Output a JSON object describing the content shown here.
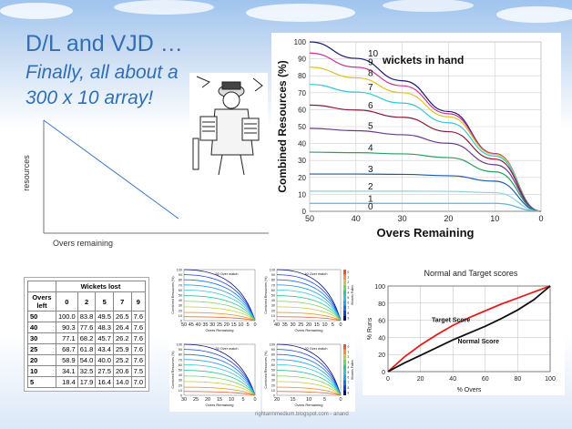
{
  "slide": {
    "title": "D/L and VJD …",
    "subtitle_line1": "Finally, all about a",
    "subtitle_line2": "300 x 10 array!",
    "credit": "rightarmmedium.blogspot.com - anand"
  },
  "colors": {
    "title": "#2f6fb6"
  },
  "chart_data": [
    {
      "type": "line",
      "id": "sketch",
      "xlabel": "Overs remaining",
      "ylabel": "resources",
      "series": [
        {
          "x": [
            0,
            1
          ],
          "y": [
            1,
            0
          ]
        }
      ]
    },
    {
      "type": "line",
      "id": "resources",
      "title": "wickets in hand",
      "xlabel": "Overs Remaining",
      "ylabel": "Combined Resources (%)",
      "xlim": [
        50,
        0
      ],
      "ylim": [
        0,
        100
      ],
      "x_ticks": [
        50,
        40,
        30,
        20,
        10,
        0
      ],
      "y_ticks": [
        0,
        10,
        20,
        30,
        40,
        50,
        60,
        70,
        80,
        90,
        100
      ],
      "grid": true,
      "x": [
        50,
        40,
        30,
        20,
        10,
        0
      ],
      "series": [
        {
          "name": "10",
          "color": "#1a1a6e",
          "values": [
            100,
            90.3,
            77.1,
            58.9,
            34.1,
            0
          ]
        },
        {
          "name": "9",
          "color": "#cc3399",
          "values": [
            93.4,
            85.1,
            74.1,
            57.6,
            34.0,
            0
          ]
        },
        {
          "name": "8",
          "color": "#e0c020",
          "values": [
            85.1,
            78.8,
            70.0,
            55.8,
            33.6,
            0
          ]
        },
        {
          "name": "7",
          "color": "#30c8d8",
          "values": [
            74.9,
            70.4,
            63.9,
            52.3,
            32.6,
            0
          ]
        },
        {
          "name": "6",
          "color": "#8b1a3a",
          "values": [
            62.7,
            59.8,
            55.5,
            47.0,
            30.8,
            0
          ]
        },
        {
          "name": "5",
          "color": "#6a3a8a",
          "values": [
            49.0,
            47.6,
            45.2,
            40.2,
            27.5,
            0
          ]
        },
        {
          "name": "4",
          "color": "#2aa060",
          "values": [
            34.9,
            34.6,
            33.9,
            31.7,
            23.3,
            0
          ]
        },
        {
          "name": "3",
          "color": "#1a5aa8",
          "values": [
            22.0,
            22.0,
            21.8,
            21.0,
            17.8,
            0
          ]
        },
        {
          "name": "2",
          "color": "#8bd0d8",
          "values": [
            11.9,
            11.9,
            11.9,
            11.8,
            11.0,
            0
          ]
        },
        {
          "name": "1",
          "color": "#6ab0e0",
          "values": [
            4.7,
            4.7,
            4.7,
            4.7,
            4.7,
            0
          ]
        },
        {
          "name": "0",
          "color": "#a0a0a0",
          "values": [
            0,
            0,
            0,
            0,
            0,
            0
          ]
        }
      ]
    },
    {
      "type": "table",
      "id": "wickets-table",
      "title": "Wickets lost",
      "columns": [
        "Overs left",
        "0",
        "2",
        "5",
        "7",
        "9"
      ],
      "rows": [
        [
          "50",
          "100.0",
          "83.8",
          "49.5",
          "26.5",
          "7.6"
        ],
        [
          "40",
          "90.3",
          "77.6",
          "48.3",
          "26.4",
          "7.6"
        ],
        [
          "30",
          "77.1",
          "68.2",
          "45.7",
          "26.2",
          "7.6"
        ],
        [
          "25",
          "68.7",
          "61.8",
          "43.4",
          "25.9",
          "7.6"
        ],
        [
          "20",
          "58.9",
          "54.0",
          "40.0",
          "25.2",
          "7.6"
        ],
        [
          "10",
          "34.1",
          "32.5",
          "27.5",
          "20.6",
          "7.5"
        ],
        [
          "5",
          "18.4",
          "17.9",
          "16.4",
          "14.0",
          "7.0"
        ]
      ]
    },
    {
      "type": "line",
      "id": "over-50",
      "title": "50 Over match",
      "xlabel": "Overs Remaining",
      "ylabel": "Combined Resources (%)",
      "x_ticks": [
        50,
        45,
        40,
        35,
        30,
        25,
        20,
        15,
        10,
        5,
        0
      ],
      "y_ticks": [
        0,
        10,
        20,
        30,
        40,
        50,
        60,
        70,
        80,
        90,
        100
      ],
      "overs": 50
    },
    {
      "type": "line",
      "id": "over-40",
      "title": "40 Over match",
      "xlabel": "Overs Remaining",
      "ylabel": "Combined Resources (%)",
      "x_ticks": [
        40,
        35,
        30,
        25,
        20,
        15,
        10,
        5,
        0
      ],
      "y_ticks": [
        0,
        10,
        20,
        30,
        40,
        50,
        60,
        70,
        80,
        90,
        100
      ],
      "legend_label": "Wickets Fallen",
      "legend_values": [
        "0",
        "1",
        "2",
        "3",
        "4",
        "5",
        "6",
        "7",
        "8",
        "9"
      ],
      "overs": 40
    },
    {
      "type": "line",
      "id": "over-30",
      "title": "30 Over match",
      "xlabel": "Overs Remaining",
      "ylabel": "Combined Resources (%)",
      "x_ticks": [
        30,
        25,
        20,
        15,
        10,
        5,
        0
      ],
      "y_ticks": [
        0,
        10,
        20,
        30,
        40,
        50,
        60,
        70,
        80,
        90,
        100
      ],
      "overs": 30
    },
    {
      "type": "line",
      "id": "over-20",
      "title": "20 Over match",
      "xlabel": "Overs Remaining",
      "ylabel": "Combined Resources (%)",
      "x_ticks": [
        20,
        15,
        10,
        5,
        0
      ],
      "y_ticks": [
        0,
        10,
        20,
        30,
        40,
        50,
        60,
        70,
        80,
        90,
        100
      ],
      "legend_label": "Wickets Fallen",
      "legend_values": [
        "0",
        "1",
        "2",
        "3",
        "4",
        "5",
        "6",
        "7",
        "8",
        "9"
      ],
      "overs": 20
    },
    {
      "type": "line",
      "id": "normal-target",
      "title": "Normal and Target scores",
      "xlabel": "% Overs",
      "ylabel": "% Runs",
      "xlim": [
        0,
        100
      ],
      "ylim": [
        0,
        100
      ],
      "x_ticks": [
        0,
        20,
        40,
        60,
        80,
        100
      ],
      "y_ticks": [
        0,
        20,
        40,
        60,
        80,
        100
      ],
      "grid": true,
      "x": [
        0,
        10,
        20,
        30,
        40,
        50,
        60,
        70,
        80,
        90,
        100
      ],
      "series": [
        {
          "name": "Target Score",
          "color": "#e02020",
          "values": [
            0,
            17,
            31,
            43,
            54,
            63,
            71,
            79,
            86,
            93,
            100
          ]
        },
        {
          "name": "Normal Score",
          "color": "#111111",
          "values": [
            0,
            10,
            19,
            28,
            37,
            45,
            53,
            62,
            72,
            84,
            100
          ]
        }
      ]
    }
  ]
}
